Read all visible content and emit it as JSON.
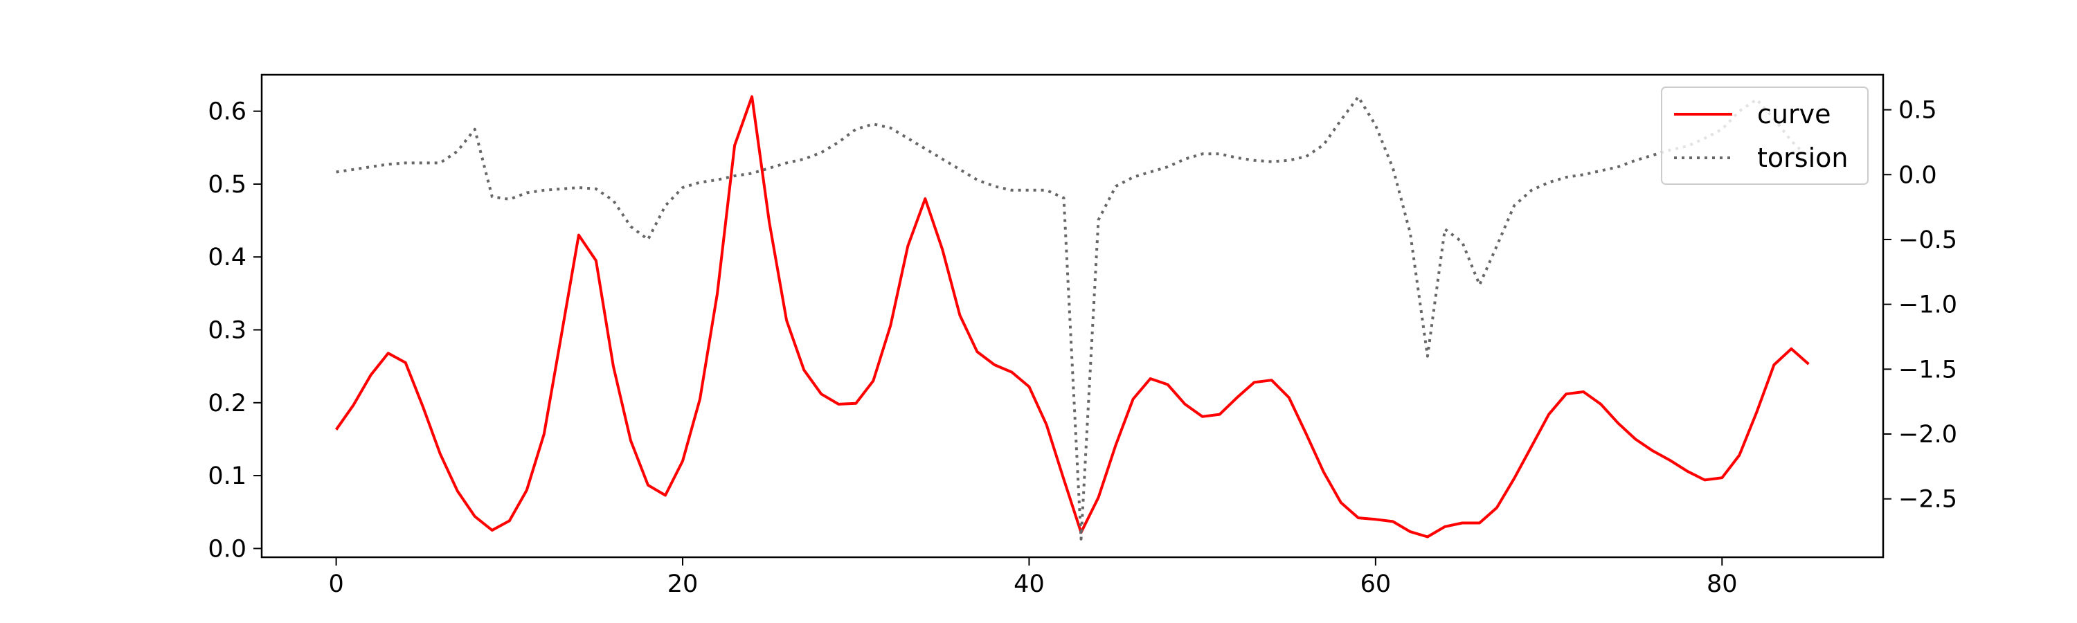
{
  "chart_data": {
    "type": "line",
    "title": "",
    "xlabel": "",
    "ylabel": "",
    "y2label": "",
    "grid": false,
    "legend_position": "top-right",
    "xlim": [
      -4.3,
      89.3
    ],
    "ylim": [
      -0.012,
      0.65
    ],
    "y2lim": [
      -2.95,
      0.77
    ],
    "x_ticks": [
      0,
      20,
      40,
      60,
      80
    ],
    "x_tick_labels": [
      "0",
      "20",
      "40",
      "60",
      "80"
    ],
    "y_ticks": [
      0.0,
      0.1,
      0.2,
      0.3,
      0.4,
      0.5,
      0.6
    ],
    "y_tick_labels": [
      "0.0",
      "0.1",
      "0.2",
      "0.3",
      "0.4",
      "0.5",
      "0.6"
    ],
    "y2_ticks": [
      0.5,
      0.0,
      -0.5,
      -1.0,
      -1.5,
      -2.0,
      -2.5
    ],
    "y2_tick_labels": [
      "0.5",
      "0.0",
      "−0.5",
      "−1.0",
      "−1.5",
      "−2.0",
      "−2.5"
    ],
    "series": [
      {
        "name": "curve",
        "axis": "left",
        "color": "#ff0000",
        "style": "solid",
        "x": [
          0,
          1,
          2,
          3,
          4,
          5,
          6,
          7,
          8,
          9,
          10,
          11,
          12,
          13,
          14,
          15,
          16,
          17,
          18,
          19,
          20,
          21,
          22,
          23,
          24,
          25,
          26,
          27,
          28,
          29,
          30,
          31,
          32,
          33,
          34,
          35,
          36,
          37,
          38,
          39,
          40,
          41,
          42,
          43,
          44,
          45,
          46,
          47,
          48,
          49,
          50,
          51,
          52,
          53,
          54,
          55,
          56,
          57,
          58,
          59,
          60,
          61,
          62,
          63,
          64,
          65,
          66,
          67,
          68,
          69,
          70,
          71,
          72,
          73,
          74,
          75,
          76,
          77,
          78,
          79,
          80,
          81,
          82,
          83,
          84,
          85
        ],
        "y": [
          0.163,
          0.197,
          0.238,
          0.268,
          0.255,
          0.195,
          0.13,
          0.079,
          0.044,
          0.025,
          0.038,
          0.08,
          0.157,
          0.293,
          0.43,
          0.395,
          0.25,
          0.148,
          0.087,
          0.073,
          0.12,
          0.205,
          0.35,
          0.553,
          0.62,
          0.448,
          0.313,
          0.245,
          0.212,
          0.198,
          0.199,
          0.23,
          0.306,
          0.415,
          0.48,
          0.41,
          0.32,
          0.27,
          0.252,
          0.242,
          0.222,
          0.17,
          0.095,
          0.022,
          0.07,
          0.142,
          0.205,
          0.233,
          0.225,
          0.198,
          0.181,
          0.184,
          0.207,
          0.228,
          0.231,
          0.207,
          0.157,
          0.105,
          0.063,
          0.042,
          0.04,
          0.037,
          0.023,
          0.016,
          0.03,
          0.035,
          0.035,
          0.056,
          0.096,
          0.14,
          0.184,
          0.212,
          0.215,
          0.198,
          0.172,
          0.15,
          0.134,
          0.121,
          0.106,
          0.094,
          0.097,
          0.128,
          0.187,
          0.252,
          0.274,
          0.253
        ]
      },
      {
        "name": "torsion",
        "axis": "right",
        "color": "#666666",
        "style": "dotted",
        "x": [
          0,
          1,
          2,
          3,
          4,
          5,
          6,
          7,
          8,
          9,
          10,
          11,
          12,
          13,
          14,
          15,
          16,
          17,
          18,
          19,
          20,
          21,
          22,
          23,
          24,
          25,
          26,
          27,
          28,
          29,
          30,
          31,
          32,
          33,
          34,
          35,
          36,
          37,
          38,
          39,
          40,
          41,
          42,
          43,
          44,
          45,
          46,
          47,
          48,
          49,
          50,
          51,
          52,
          53,
          54,
          55,
          56,
          57,
          58,
          59,
          60,
          61,
          62,
          63,
          64,
          65,
          66,
          67,
          68,
          69,
          70,
          71,
          72,
          73,
          74,
          75,
          76,
          77,
          78,
          79,
          80,
          81,
          82,
          83,
          84,
          85
        ],
        "y": [
          0.02,
          0.04,
          0.06,
          0.08,
          0.09,
          0.09,
          0.09,
          0.18,
          0.35,
          -0.17,
          -0.19,
          -0.14,
          -0.12,
          -0.11,
          -0.1,
          -0.11,
          -0.2,
          -0.4,
          -0.5,
          -0.24,
          -0.1,
          -0.06,
          -0.04,
          -0.01,
          0.01,
          0.05,
          0.09,
          0.12,
          0.17,
          0.25,
          0.35,
          0.39,
          0.36,
          0.28,
          0.2,
          0.12,
          0.04,
          -0.04,
          -0.09,
          -0.12,
          -0.12,
          -0.12,
          -0.18,
          -2.81,
          -0.35,
          -0.09,
          -0.02,
          0.02,
          0.06,
          0.12,
          0.16,
          0.16,
          0.13,
          0.11,
          0.1,
          0.11,
          0.14,
          0.23,
          0.42,
          0.6,
          0.38,
          0.05,
          -0.45,
          -1.4,
          -0.42,
          -0.52,
          -0.85,
          -0.55,
          -0.24,
          -0.12,
          -0.06,
          -0.02,
          0.0,
          0.03,
          0.06,
          0.11,
          0.15,
          0.19,
          0.22,
          0.28,
          0.35,
          0.49,
          0.58,
          0.43,
          0.26,
          0.13
        ]
      }
    ]
  }
}
